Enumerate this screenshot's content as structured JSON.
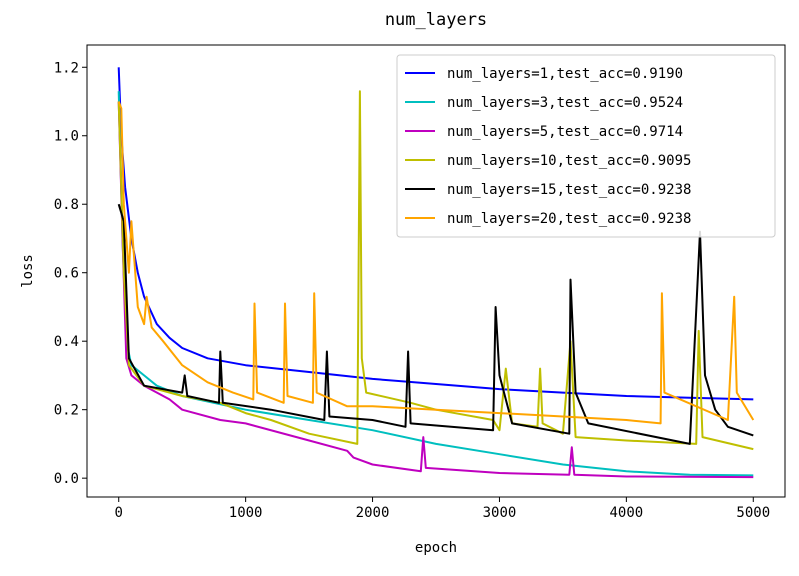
{
  "chart_data": {
    "type": "line",
    "title": "num_layers",
    "xlabel": "epoch",
    "ylabel": "loss",
    "xlim": [
      -250,
      5250
    ],
    "ylim": [
      -0.055,
      1.265
    ],
    "xticks": [
      0,
      1000,
      2000,
      3000,
      4000,
      5000
    ],
    "yticks": [
      {
        "value": 0,
        "label": "0.0"
      },
      0.2,
      0.4,
      0.6,
      0.8,
      {
        "value": 1,
        "label": "1.0"
      },
      1.2
    ],
    "grid": false,
    "legend": "upper right",
    "series": [
      {
        "name": "num_layers=1,test_acc=0.9190",
        "color": "#0000ff",
        "x": [
          0,
          20,
          50,
          100,
          150,
          200,
          300,
          400,
          500,
          700,
          1000,
          1500,
          2000,
          2500,
          3000,
          3500,
          4000,
          4500,
          5000
        ],
        "values": [
          1.2,
          1.0,
          0.85,
          0.7,
          0.6,
          0.53,
          0.45,
          0.41,
          0.38,
          0.35,
          0.33,
          0.31,
          0.29,
          0.275,
          0.26,
          0.25,
          0.24,
          0.235,
          0.23
        ]
      },
      {
        "name": "num_layers=3,test_acc=0.9524",
        "color": "#00bfbf",
        "x": [
          0,
          30,
          60,
          100,
          200,
          300,
          500,
          1000,
          1500,
          2000,
          2500,
          3000,
          3500,
          4000,
          4500,
          5000
        ],
        "values": [
          1.13,
          0.7,
          0.4,
          0.33,
          0.3,
          0.27,
          0.24,
          0.2,
          0.17,
          0.14,
          0.1,
          0.07,
          0.04,
          0.02,
          0.01,
          0.008
        ]
      },
      {
        "name": "num_layers=5,test_acc=0.9714",
        "color": "#bf00bf",
        "x": [
          0,
          30,
          60,
          100,
          200,
          400,
          500,
          800,
          1000,
          1500,
          1800,
          1850,
          2000,
          2380,
          2400,
          2420,
          3000,
          3550,
          3570,
          3590,
          4000,
          5000
        ],
        "values": [
          1.1,
          0.7,
          0.35,
          0.3,
          0.27,
          0.23,
          0.2,
          0.17,
          0.16,
          0.11,
          0.08,
          0.06,
          0.04,
          0.02,
          0.12,
          0.03,
          0.015,
          0.01,
          0.09,
          0.01,
          0.005,
          0.003
        ]
      },
      {
        "name": "num_layers=10,test_acc=0.9095",
        "color": "#bfbf00",
        "x": [
          0,
          40,
          80,
          200,
          500,
          800,
          1000,
          1200,
          1500,
          1880,
          1900,
          1915,
          1950,
          2300,
          2500,
          2950,
          3000,
          3050,
          3100,
          3300,
          3320,
          3340,
          3500,
          3560,
          3600,
          4000,
          4550,
          4570,
          4600,
          5000
        ],
        "values": [
          1.1,
          0.6,
          0.33,
          0.27,
          0.24,
          0.22,
          0.19,
          0.17,
          0.13,
          0.1,
          1.13,
          0.35,
          0.25,
          0.22,
          0.2,
          0.17,
          0.14,
          0.32,
          0.16,
          0.15,
          0.32,
          0.16,
          0.13,
          0.4,
          0.12,
          0.11,
          0.1,
          0.43,
          0.12,
          0.085
        ]
      },
      {
        "name": "num_layers=15,test_acc=0.9238",
        "color": "#000000",
        "x": [
          0,
          40,
          80,
          200,
          500,
          520,
          540,
          790,
          800,
          820,
          1200,
          1620,
          1640,
          1660,
          2000,
          2260,
          2280,
          2300,
          2950,
          2970,
          3000,
          3100,
          3550,
          3560,
          3600,
          3700,
          4500,
          4580,
          4620,
          4700,
          4800,
          5000
        ],
        "values": [
          0.8,
          0.75,
          0.35,
          0.27,
          0.25,
          0.3,
          0.24,
          0.22,
          0.37,
          0.22,
          0.2,
          0.17,
          0.37,
          0.18,
          0.17,
          0.15,
          0.37,
          0.16,
          0.14,
          0.5,
          0.3,
          0.16,
          0.13,
          0.58,
          0.25,
          0.16,
          0.1,
          0.72,
          0.3,
          0.2,
          0.15,
          0.125
        ]
      },
      {
        "name": "num_layers=20,test_acc=0.9238",
        "color": "#ffa500",
        "x": [
          0,
          20,
          40,
          80,
          100,
          150,
          200,
          220,
          260,
          350,
          500,
          700,
          900,
          1060,
          1070,
          1090,
          1300,
          1310,
          1330,
          1530,
          1540,
          1560,
          1800,
          2000,
          2500,
          3000,
          3500,
          4000,
          4270,
          4280,
          4300,
          4800,
          4850,
          4870,
          5000
        ],
        "values": [
          1.1,
          1.08,
          0.8,
          0.6,
          0.75,
          0.5,
          0.45,
          0.53,
          0.44,
          0.4,
          0.33,
          0.28,
          0.25,
          0.23,
          0.51,
          0.25,
          0.22,
          0.51,
          0.24,
          0.22,
          0.54,
          0.25,
          0.21,
          0.21,
          0.2,
          0.19,
          0.18,
          0.17,
          0.16,
          0.54,
          0.25,
          0.17,
          0.53,
          0.25,
          0.17
        ]
      }
    ]
  }
}
